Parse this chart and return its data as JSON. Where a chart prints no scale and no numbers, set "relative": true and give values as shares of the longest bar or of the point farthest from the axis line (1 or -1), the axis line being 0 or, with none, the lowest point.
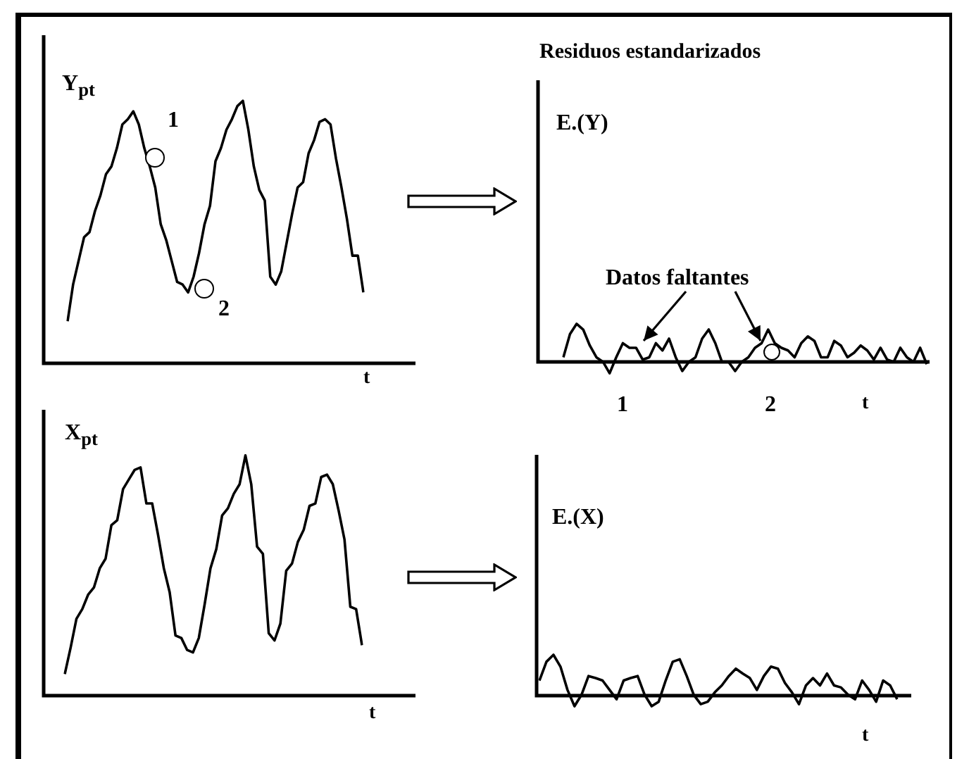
{
  "chart_data": [
    {
      "type": "line",
      "relative": true,
      "ylabel": "Y$_{pt}$",
      "xlabel": "t",
      "color": "#000000",
      "marker": "none",
      "annotations": [
        "1",
        "2"
      ],
      "categories": [
        null,
        null,
        null,
        null,
        null,
        null,
        null,
        null,
        null,
        null,
        null,
        null,
        null,
        null,
        null,
        null,
        null,
        null,
        null,
        null,
        null,
        null,
        null,
        null,
        null,
        null,
        null,
        null,
        null,
        null,
        null,
        null,
        null,
        null,
        null,
        null,
        null,
        null,
        null,
        null,
        null,
        null,
        null,
        null,
        null,
        null,
        null,
        null,
        null,
        null,
        null,
        null,
        null,
        null,
        null
      ],
      "values": [
        0.16,
        0.3,
        0.39,
        0.48,
        0.5,
        0.58,
        0.64,
        0.72,
        0.75,
        0.82,
        0.91,
        0.93,
        0.96,
        0.91,
        0.82,
        0.75,
        0.67,
        0.53,
        0.47,
        0.39,
        0.31,
        0.3,
        0.27,
        0.33,
        0.42,
        0.53,
        0.6,
        0.77,
        0.82,
        0.89,
        0.93,
        0.98,
        1,
        0.89,
        0.75,
        0.66,
        0.62,
        0.33,
        0.3,
        0.35,
        0.46,
        0.57,
        0.67,
        0.69,
        0.8,
        0.85,
        0.92,
        0.93,
        0.91,
        0.78,
        0.67,
        0.55,
        0.41,
        0.41,
        0.27
      ]
    },
    {
      "type": "line",
      "relative": true,
      "title": "Residuos estandarizados",
      "ylabel": "E.(Y)",
      "xlabel": "t",
      "color": "#000000",
      "marker": "none",
      "annotations": [
        "Datos faltantes",
        "1",
        "2"
      ],
      "categories": [
        null,
        null,
        null,
        null,
        null,
        null,
        null,
        null,
        null,
        null,
        null,
        null,
        null,
        null,
        null,
        null,
        null,
        null,
        null,
        null,
        null,
        null,
        null,
        null,
        null,
        null,
        null,
        null,
        null,
        null,
        null,
        null,
        null,
        null,
        null,
        null,
        null,
        null,
        null,
        null,
        null,
        null,
        null,
        null,
        null,
        null,
        null,
        null,
        null,
        null,
        null,
        null,
        null,
        null,
        null,
        null
      ],
      "values": [
        0.12,
        0.73,
        1,
        0.85,
        0.43,
        0.12,
        0,
        -0.3,
        0.12,
        0.49,
        0.37,
        0.37,
        0.06,
        0.12,
        0.49,
        0.3,
        0.61,
        0.12,
        -0.24,
        0,
        0.12,
        0.61,
        0.85,
        0.49,
        0,
        0,
        -0.24,
        0,
        0.12,
        0.37,
        0.49,
        0.85,
        0.49,
        0.37,
        0.3,
        0.12,
        0.49,
        0.67,
        0.55,
        0.12,
        0.12,
        0.55,
        0.43,
        0.12,
        0.24,
        0.43,
        0.3,
        0.06,
        0.37,
        0.06,
        0,
        0.37,
        0.12,
        0,
        0.37,
        -0.06
      ]
    },
    {
      "type": "line",
      "relative": true,
      "ylabel": "X$_{pt}$",
      "xlabel": "t",
      "color": "#000000",
      "marker": "none",
      "categories": [
        null,
        null,
        null,
        null,
        null,
        null,
        null,
        null,
        null,
        null,
        null,
        null,
        null,
        null,
        null,
        null,
        null,
        null,
        null,
        null,
        null,
        null,
        null,
        null,
        null,
        null,
        null,
        null,
        null,
        null,
        null,
        null,
        null,
        null,
        null,
        null,
        null,
        null,
        null,
        null,
        null,
        null,
        null,
        null,
        null,
        null,
        null,
        null,
        null,
        null,
        null,
        null
      ],
      "values": [
        0.09,
        0.2,
        0.32,
        0.36,
        0.42,
        0.45,
        0.53,
        0.57,
        0.71,
        0.73,
        0.86,
        0.9,
        0.94,
        0.95,
        0.8,
        0.8,
        0.67,
        0.53,
        0.43,
        0.25,
        0.24,
        0.19,
        0.18,
        0.24,
        0.38,
        0.53,
        0.61,
        0.75,
        0.78,
        0.84,
        0.88,
        1,
        0.88,
        0.62,
        0.59,
        0.26,
        0.23,
        0.3,
        0.52,
        0.55,
        0.64,
        0.69,
        0.79,
        0.8,
        0.91,
        0.92,
        0.88,
        0.77,
        0.65,
        0.37,
        0.36,
        0.21
      ]
    },
    {
      "type": "line",
      "relative": true,
      "ylabel": "E.(X)",
      "xlabel": "t",
      "color": "#000000",
      "marker": "none",
      "categories": [
        null,
        null,
        null,
        null,
        null,
        null,
        null,
        null,
        null,
        null,
        null,
        null,
        null,
        null,
        null,
        null,
        null,
        null,
        null,
        null,
        null,
        null,
        null,
        null,
        null,
        null,
        null,
        null,
        null,
        null,
        null,
        null,
        null,
        null,
        null,
        null,
        null,
        null,
        null,
        null,
        null,
        null,
        null,
        null,
        null,
        null,
        null,
        null,
        null,
        null,
        null,
        null
      ],
      "values": [
        0.37,
        0.83,
        1,
        0.71,
        0.14,
        -0.26,
        0.02,
        0.48,
        0.43,
        0.37,
        0.14,
        -0.09,
        0.37,
        0.43,
        0.48,
        0.02,
        -0.26,
        -0.15,
        0.37,
        0.83,
        0.89,
        0.48,
        0.02,
        -0.21,
        -0.15,
        0.08,
        0.25,
        0.48,
        0.66,
        0.54,
        0.43,
        0.14,
        0.48,
        0.71,
        0.66,
        0.31,
        0.08,
        -0.21,
        0.25,
        0.43,
        0.25,
        0.54,
        0.25,
        0.2,
        0.02,
        -0.09,
        0.37,
        0.14,
        -0.15,
        0.37,
        0.25,
        -0.09
      ]
    }
  ]
}
